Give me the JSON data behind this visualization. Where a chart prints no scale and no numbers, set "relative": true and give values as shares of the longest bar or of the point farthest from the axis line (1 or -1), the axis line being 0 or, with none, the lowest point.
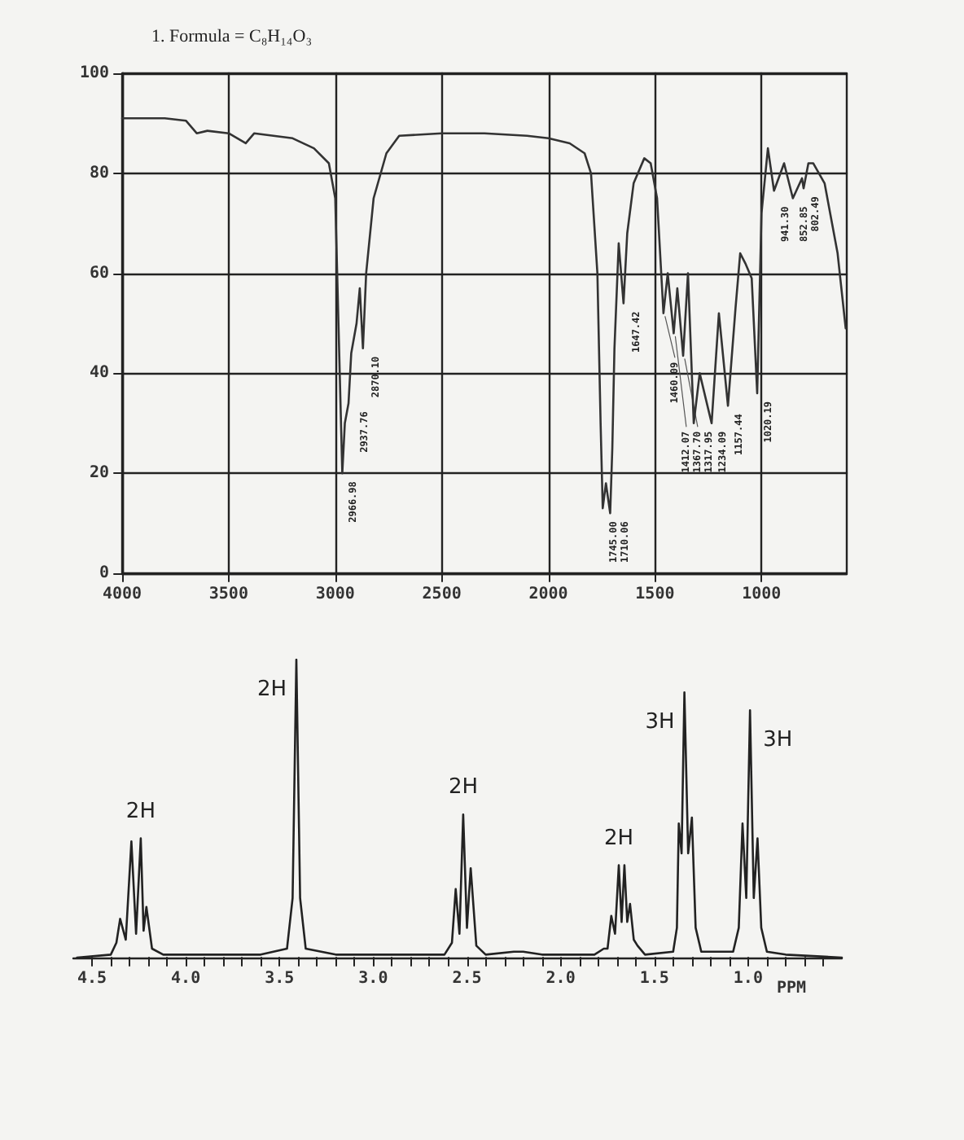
{
  "chart_data": [
    {
      "type": "line",
      "title": "1. Formula = C₈H₁₄O₃",
      "color": "#333333",
      "x": [
        4000,
        3800,
        3700,
        3650,
        3600,
        3500,
        3420,
        3380,
        3200,
        3100,
        3030,
        3000,
        2985,
        2966.98,
        2955,
        2937.76,
        2925,
        2900,
        2885,
        2870.1,
        2855,
        2820,
        2760,
        2700,
        2500,
        2300,
        2100,
        2000,
        1900,
        1830,
        1800,
        1770,
        1755,
        1745.0,
        1730,
        1710.06,
        1700,
        1690,
        1670,
        1647.42,
        1630,
        1600,
        1550,
        1520,
        1490,
        1460.09,
        1440,
        1412.07,
        1395,
        1367.7,
        1345,
        1317.95,
        1290,
        1234.09,
        1200,
        1157.44,
        1122,
        1100,
        1076,
        1046,
        1020.19,
        1000,
        970,
        941.3,
        894,
        852.85,
        810,
        802.49,
        780,
        757,
        704,
        643,
        605
      ],
      "values": [
        91,
        91,
        90.5,
        88,
        88.5,
        88,
        86,
        88,
        87,
        85,
        82,
        75,
        50,
        20,
        30,
        34,
        44,
        50,
        57,
        45,
        60,
        75,
        84,
        87.5,
        88,
        88,
        87.5,
        87,
        86,
        84,
        80,
        60,
        30,
        13,
        18,
        12,
        25,
        45,
        66,
        54,
        68,
        78,
        83,
        82,
        75,
        52,
        60,
        48,
        57,
        43.5,
        60,
        30,
        40,
        30,
        52,
        33.5,
        53,
        64,
        62,
        59,
        36,
        72,
        85,
        76.5,
        82,
        75,
        79,
        77,
        82,
        82,
        78,
        64,
        49
      ],
      "xlim": [
        4000,
        600
      ],
      "xticks": [
        4000,
        3500,
        3000,
        2500,
        2000,
        1500,
        1000
      ],
      "ylim": [
        0,
        100
      ],
      "yticks": [
        0,
        20,
        40,
        60,
        80,
        100
      ],
      "grid": true,
      "annotations": [
        {
          "text": "2966.98",
          "x": 2966.98,
          "y": 20
        },
        {
          "text": "2937.76",
          "x": 2937.76,
          "y": 34
        },
        {
          "text": "2870.10",
          "x": 2870.1,
          "y": 45
        },
        {
          "text": "1745.00",
          "x": 1745.0,
          "y": 13
        },
        {
          "text": "1710.06",
          "x": 1710.06,
          "y": 12
        },
        {
          "text": "1647.42",
          "x": 1647.42,
          "y": 54
        },
        {
          "text": "1460.09",
          "x": 1460.09,
          "y": 52
        },
        {
          "text": "1412.07",
          "x": 1412.07,
          "y": 48
        },
        {
          "text": "1367.70",
          "x": 1367.7,
          "y": 43.5
        },
        {
          "text": "1317.95",
          "x": 1317.95,
          "y": 30
        },
        {
          "text": "1234.09",
          "x": 1234.09,
          "y": 30
        },
        {
          "text": "1157.44",
          "x": 1157.44,
          "y": 33.5
        },
        {
          "text": "1020.19",
          "x": 1020.19,
          "y": 36
        },
        {
          "text": "941.30",
          "x": 941.3,
          "y": 76.5
        },
        {
          "text": "852.85",
          "x": 852.85,
          "y": 75
        },
        {
          "text": "802.49",
          "x": 802.49,
          "y": 77
        }
      ]
    },
    {
      "type": "line",
      "relative": true,
      "color": "#222222",
      "xlabel": "PPM",
      "x": [
        4.58,
        4.4,
        4.37,
        4.35,
        4.32,
        4.29,
        4.265,
        4.24,
        4.225,
        4.21,
        4.18,
        4.12,
        3.6,
        3.46,
        3.43,
        3.41,
        3.39,
        3.36,
        3.2,
        2.62,
        2.58,
        2.56,
        2.54,
        2.52,
        2.5,
        2.48,
        2.45,
        2.4,
        2.25,
        2.2,
        2.1,
        1.82,
        1.77,
        1.75,
        1.73,
        1.71,
        1.69,
        1.675,
        1.66,
        1.645,
        1.63,
        1.61,
        1.59,
        1.55,
        1.4,
        1.38,
        1.37,
        1.355,
        1.34,
        1.32,
        1.3,
        1.28,
        1.25,
        1.08,
        1.05,
        1.03,
        1.01,
        0.99,
        0.97,
        0.95,
        0.93,
        0.9,
        0.8,
        0.5
      ],
      "values": [
        0,
        0.01,
        0.05,
        0.13,
        0.06,
        0.39,
        0.08,
        0.4,
        0.09,
        0.17,
        0.03,
        0.01,
        0.01,
        0.03,
        0.2,
        1,
        0.2,
        0.03,
        0.01,
        0.01,
        0.05,
        0.23,
        0.08,
        0.48,
        0.1,
        0.3,
        0.04,
        0.01,
        0.02,
        0.02,
        0.01,
        0.01,
        0.03,
        0.03,
        0.14,
        0.08,
        0.31,
        0.12,
        0.31,
        0.12,
        0.18,
        0.06,
        0.04,
        0.01,
        0.02,
        0.1,
        0.45,
        0.35,
        0.89,
        0.35,
        0.47,
        0.1,
        0.02,
        0.02,
        0.1,
        0.45,
        0.2,
        0.83,
        0.2,
        0.4,
        0.1,
        0.02,
        0.01,
        0
      ],
      "xlim": [
        4.6,
        0.5
      ],
      "xticks": [
        {
          "value": 4.5,
          "label": "4.5"
        },
        {
          "value": 4.4,
          "label": null
        },
        {
          "value": 4.3,
          "label": null
        },
        {
          "value": 4.2,
          "label": null
        },
        {
          "value": 4.1,
          "label": null
        },
        {
          "value": 4,
          "label": "4.0"
        },
        {
          "value": 3.9,
          "label": null
        },
        {
          "value": 3.8,
          "label": null
        },
        {
          "value": 3.7,
          "label": null
        },
        {
          "value": 3.6,
          "label": null
        },
        {
          "value": 3.5,
          "label": "3.5"
        },
        {
          "value": 3.4,
          "label": null
        },
        {
          "value": 3.3,
          "label": null
        },
        {
          "value": 3.2,
          "label": null
        },
        {
          "value": 3.1,
          "label": null
        },
        {
          "value": 3,
          "label": "3.0"
        },
        {
          "value": 2.9,
          "label": null
        },
        {
          "value": 2.8,
          "label": null
        },
        {
          "value": 2.7,
          "label": null
        },
        {
          "value": 2.6,
          "label": null
        },
        {
          "value": 2.5,
          "label": "2.5"
        },
        {
          "value": 2.4,
          "label": null
        },
        {
          "value": 2.3,
          "label": null
        },
        {
          "value": 2.2,
          "label": null
        },
        {
          "value": 2.1,
          "label": null
        },
        {
          "value": 2,
          "label": "2.0"
        },
        {
          "value": 1.9,
          "label": null
        },
        {
          "value": 1.8,
          "label": null
        },
        {
          "value": 1.7,
          "label": null
        },
        {
          "value": 1.6,
          "label": null
        },
        {
          "value": 1.5,
          "label": "1.5"
        },
        {
          "value": 1.4,
          "label": null
        },
        {
          "value": 1.3,
          "label": null
        },
        {
          "value": 1.2,
          "label": null
        },
        {
          "value": 1.1,
          "label": null
        },
        {
          "value": 1,
          "label": "1.0"
        },
        {
          "value": 0.9,
          "label": null
        },
        {
          "value": 0.8,
          "label": null
        },
        {
          "value": 0.7,
          "label": null
        },
        {
          "value": 0.6,
          "label": null
        }
      ],
      "annotations": [
        {
          "text": "2H",
          "x": 4.24,
          "y": 0.4
        },
        {
          "text": "2H",
          "x": 3.41,
          "y": 1
        },
        {
          "text": "2H",
          "x": 2.52,
          "y": 0.48
        },
        {
          "text": "2H",
          "x": 1.69,
          "y": 0.31
        },
        {
          "text": "3H",
          "x": 1.34,
          "y": 0.89
        },
        {
          "text": "3H",
          "x": 0.99,
          "y": 0.83
        }
      ]
    }
  ]
}
